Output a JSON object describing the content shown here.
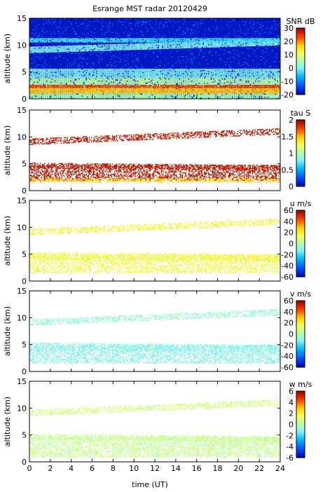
{
  "figure": {
    "title": "Esrange MST radar 20120429",
    "xlabel": "time (UT)"
  },
  "chart_data": [
    {
      "type": "heatmap",
      "x_range": [
        0,
        24
      ],
      "x_ticks": [
        0,
        2,
        4,
        6,
        8,
        10,
        12,
        14,
        16,
        18,
        20,
        22,
        24
      ],
      "ylabel": "altitude (km)",
      "ylim": [
        0,
        15
      ],
      "y_ticks": [
        0,
        5,
        10,
        15
      ],
      "colorbar": {
        "label": "SNR dB",
        "range": [
          -20,
          30
        ],
        "ticks": [
          -20,
          -10,
          0,
          10,
          20,
          30
        ]
      },
      "fill": "full",
      "layers": [
        {
          "alt_start": 0.0,
          "alt_end": 4.0,
          "slope": 0.0,
          "value": 5
        },
        {
          "alt_start": 1.0,
          "alt_end": 1.8,
          "slope": 0.0,
          "value": 18
        },
        {
          "alt_start": 2.0,
          "alt_end": 2.6,
          "slope": 0.0,
          "value": 24
        },
        {
          "alt_start": 4.0,
          "alt_end": 5.5,
          "slope": 0.0,
          "value": 0
        },
        {
          "alt_start": 8.5,
          "alt_end": 9.5,
          "slope": 0.06,
          "value": 0
        },
        {
          "alt_start": 10.5,
          "alt_end": 11.2,
          "slope": 0.0,
          "value": -3
        }
      ]
    },
    {
      "type": "heatmap",
      "x_range": [
        0,
        24
      ],
      "x_ticks": [
        0,
        2,
        4,
        6,
        8,
        10,
        12,
        14,
        16,
        18,
        20,
        22,
        24
      ],
      "ylabel": "altitude (km)",
      "ylim": [
        0,
        15
      ],
      "y_ticks": [
        0,
        5,
        10,
        15
      ],
      "colorbar": {
        "label": "tau S",
        "range": [
          0,
          2
        ],
        "ticks": [
          0,
          0.5,
          1,
          1.5,
          2
        ]
      },
      "fill": "sparse",
      "layers": [
        {
          "alt_start": 8.5,
          "alt_end": 9.5,
          "slope": 0.08,
          "value": 1.9
        },
        {
          "alt_start": 4.2,
          "alt_end": 5.2,
          "slope": -0.02,
          "value": 1.9
        },
        {
          "alt_start": 1.8,
          "alt_end": 4.8,
          "slope": 0.0,
          "value": 1.9
        },
        {
          "alt_start": 1.5,
          "alt_end": 2.2,
          "slope": 0.0,
          "value": 1.4
        }
      ]
    },
    {
      "type": "heatmap",
      "x_range": [
        0,
        24
      ],
      "x_ticks": [
        0,
        2,
        4,
        6,
        8,
        10,
        12,
        14,
        16,
        18,
        20,
        22,
        24
      ],
      "ylabel": "altitude (km)",
      "ylim": [
        0,
        15
      ],
      "y_ticks": [
        0,
        5,
        10,
        15
      ],
      "colorbar": {
        "label": "u m/s",
        "range": [
          -60,
          60
        ],
        "ticks": [
          -60,
          -40,
          -20,
          0,
          20,
          40,
          60
        ]
      },
      "fill": "sparse",
      "layers": [
        {
          "alt_start": 8.5,
          "alt_end": 9.5,
          "slope": 0.08,
          "value": 18
        },
        {
          "alt_start": 4.0,
          "alt_end": 5.3,
          "slope": -0.02,
          "value": 17
        },
        {
          "alt_start": 1.5,
          "alt_end": 4.8,
          "slope": 0.0,
          "value": 16
        }
      ]
    },
    {
      "type": "heatmap",
      "x_range": [
        0,
        24
      ],
      "x_ticks": [
        0,
        2,
        4,
        6,
        8,
        10,
        12,
        14,
        16,
        18,
        20,
        22,
        24
      ],
      "ylabel": "altitude (km)",
      "ylim": [
        0,
        15
      ],
      "y_ticks": [
        0,
        5,
        10,
        15
      ],
      "colorbar": {
        "label": "v m/s",
        "range": [
          -60,
          60
        ],
        "ticks": [
          -60,
          -40,
          -20,
          0,
          20,
          40,
          60
        ]
      },
      "fill": "sparse",
      "layers": [
        {
          "alt_start": 8.5,
          "alt_end": 9.5,
          "slope": 0.08,
          "value": -6
        },
        {
          "alt_start": 4.0,
          "alt_end": 5.3,
          "slope": -0.02,
          "value": -8
        },
        {
          "alt_start": 1.5,
          "alt_end": 4.8,
          "slope": 0.0,
          "value": -10
        }
      ]
    },
    {
      "type": "heatmap",
      "x_range": [
        0,
        24
      ],
      "x_ticks": [
        0,
        2,
        4,
        6,
        8,
        10,
        12,
        14,
        16,
        18,
        20,
        22,
        24
      ],
      "ylabel": "altitude (km)",
      "ylim": [
        0,
        15
      ],
      "y_ticks": [
        0,
        5,
        10,
        15
      ],
      "colorbar": {
        "label": "w m/s",
        "range": [
          -6,
          6
        ],
        "ticks": [
          -6,
          -4,
          -2,
          0,
          2,
          4,
          6
        ]
      },
      "fill": "sparse",
      "layers": [
        {
          "alt_start": 8.5,
          "alt_end": 9.5,
          "slope": 0.08,
          "value": 0.8
        },
        {
          "alt_start": 4.2,
          "alt_end": 5.2,
          "slope": -0.02,
          "value": 0.6
        },
        {
          "alt_start": 0.8,
          "alt_end": 4.6,
          "slope": 0.0,
          "value": 0.5
        }
      ]
    }
  ]
}
